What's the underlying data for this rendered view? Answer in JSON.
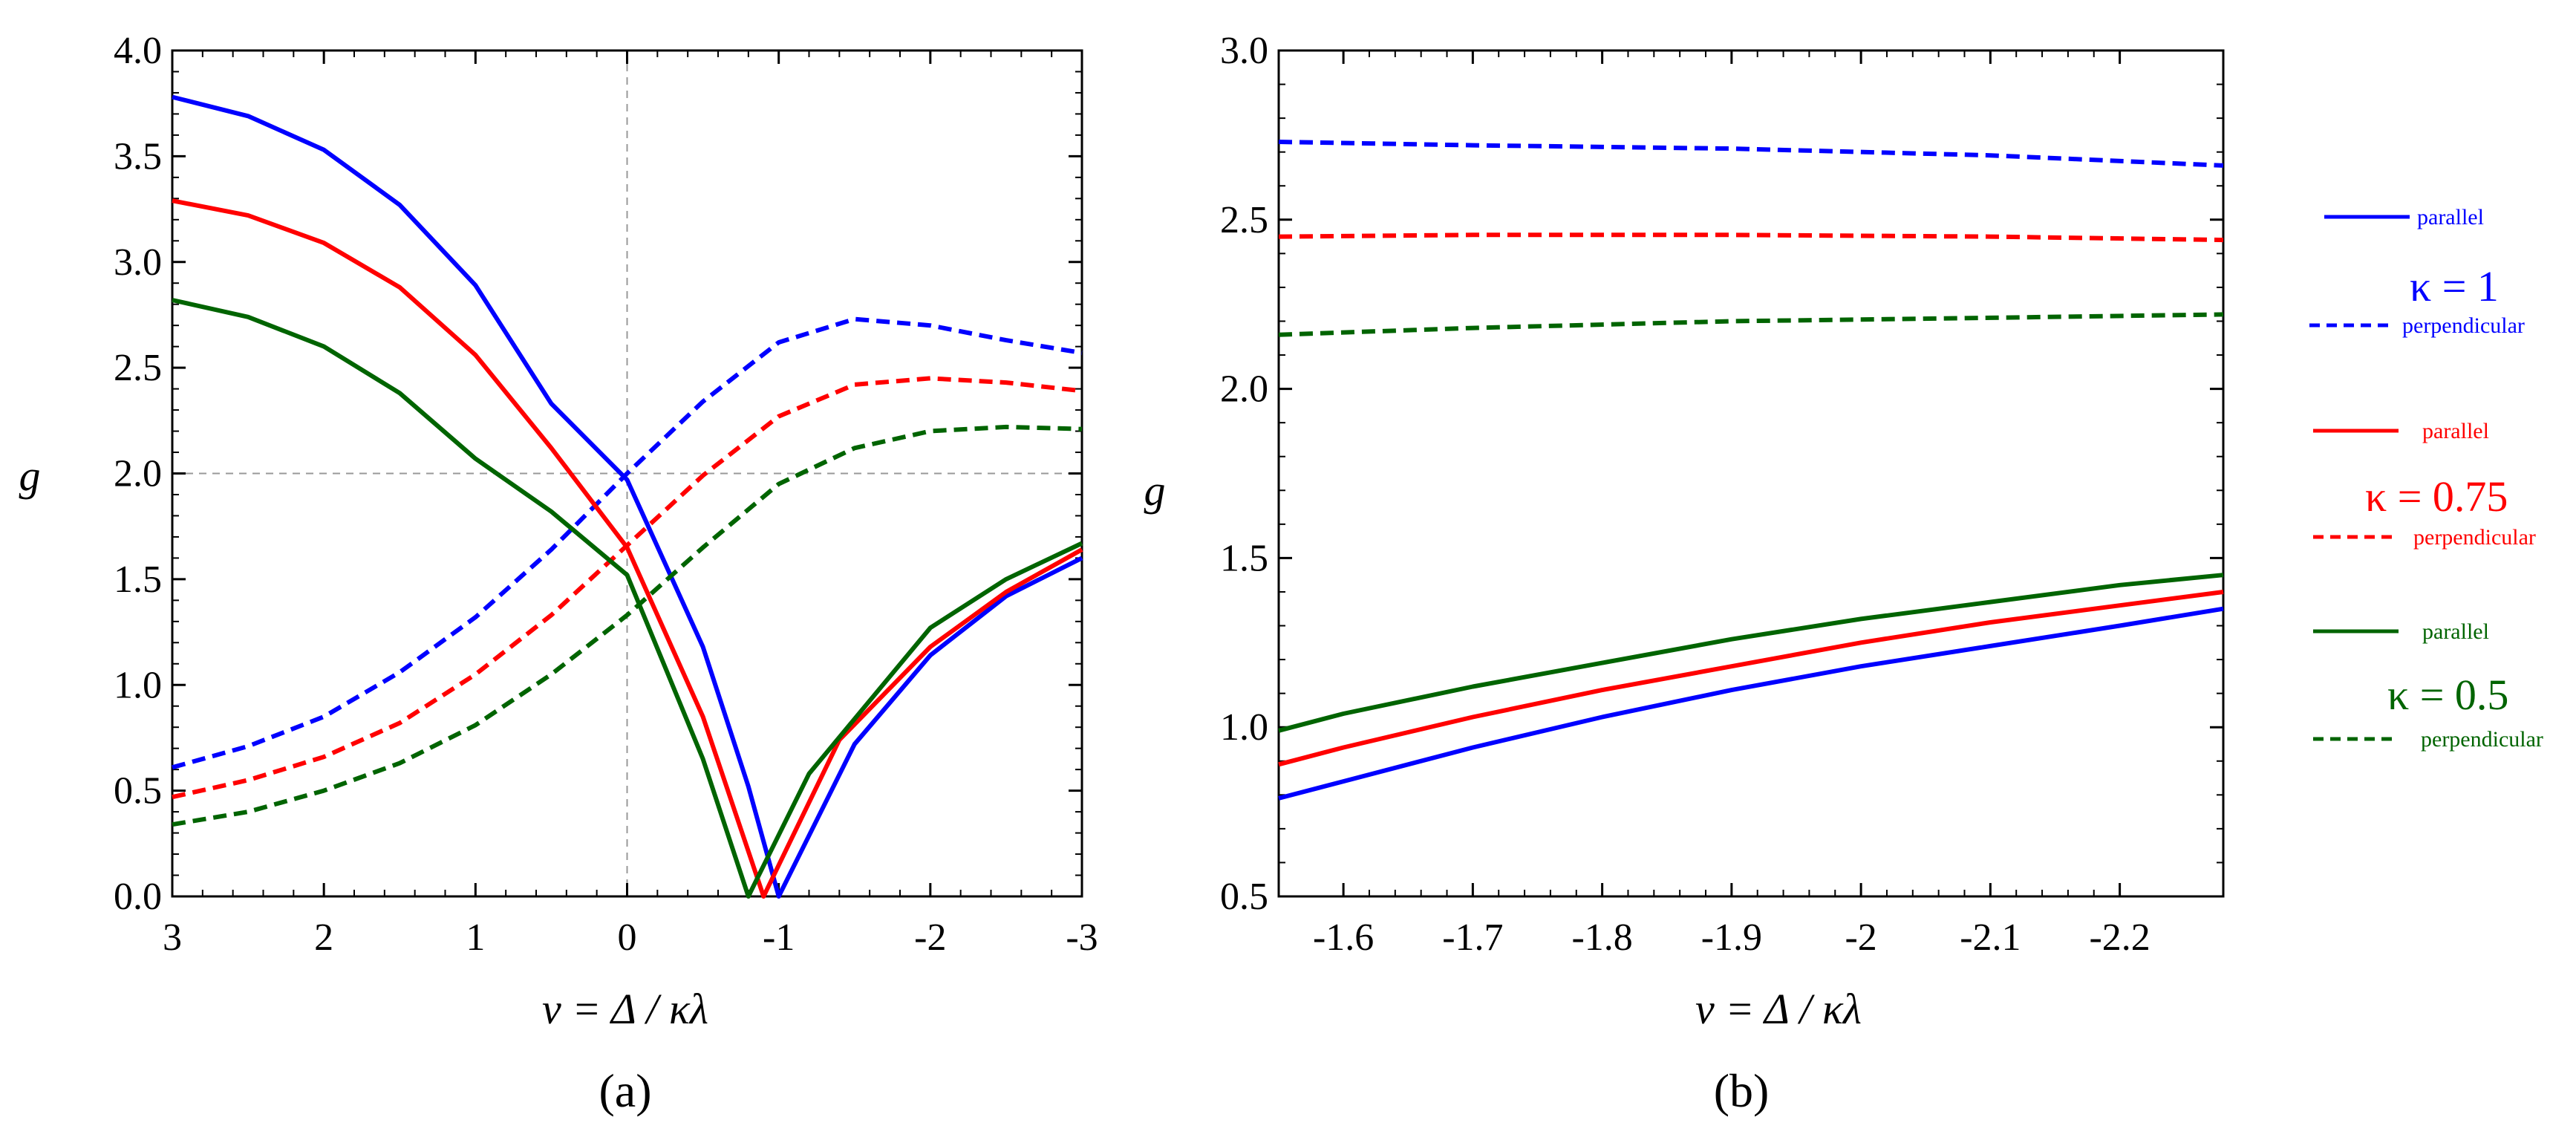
{
  "chart_data": [
    {
      "type": "line",
      "panel": "(a)",
      "xlabel": "ν = Δ / κλ",
      "ylabel": "g",
      "xlim": [
        3,
        -3
      ],
      "ylim": [
        0.0,
        4.0
      ],
      "x_ticks": [
        3,
        2,
        1,
        0,
        -1,
        -2,
        -3
      ],
      "y_ticks": [
        "0.0",
        "0.5",
        "1.0",
        "1.5",
        "2.0",
        "2.5",
        "3.0",
        "3.5",
        "4.0"
      ],
      "x_tick_labels": [
        "3",
        "2",
        "1",
        "0",
        "-1",
        "-2",
        "-3"
      ],
      "reference_lines": {
        "x": 0,
        "y": 2.0
      },
      "series": [
        {
          "name": "κ = 1 parallel",
          "color": "#0000ff",
          "dash": "solid",
          "x": [
            3,
            2.5,
            2,
            1.5,
            1,
            0.5,
            0,
            -0.5,
            -0.8,
            -1,
            -1.5,
            -2,
            -2.5,
            -3
          ],
          "y": [
            3.78,
            3.69,
            3.53,
            3.27,
            2.89,
            2.33,
            1.97,
            1.18,
            0.52,
            0.0,
            0.72,
            1.14,
            1.42,
            1.6
          ]
        },
        {
          "name": "κ = 1 perpendicular",
          "color": "#0000ff",
          "dash": "dashed",
          "x": [
            3,
            2.5,
            2,
            1.5,
            1,
            0.5,
            0,
            -0.5,
            -1,
            -1.5,
            -2,
            -2.5,
            -3
          ],
          "y": [
            0.61,
            0.71,
            0.85,
            1.06,
            1.32,
            1.64,
            2.0,
            2.34,
            2.62,
            2.73,
            2.7,
            2.63,
            2.57
          ]
        },
        {
          "name": "κ = 0.75 parallel",
          "color": "#ff0000",
          "dash": "solid",
          "x": [
            3,
            2.5,
            2,
            1.5,
            1,
            0.5,
            0,
            -0.5,
            -0.9,
            -1.4,
            -2,
            -2.5,
            -3
          ],
          "y": [
            3.29,
            3.22,
            3.09,
            2.88,
            2.56,
            2.12,
            1.65,
            0.85,
            0.0,
            0.74,
            1.18,
            1.44,
            1.64
          ]
        },
        {
          "name": "κ = 0.75 perpendicular",
          "color": "#ff0000",
          "dash": "dashed",
          "x": [
            3,
            2.5,
            2,
            1.5,
            1,
            0.5,
            0,
            -0.5,
            -1,
            -1.5,
            -2,
            -2.5,
            -3
          ],
          "y": [
            0.47,
            0.55,
            0.66,
            0.82,
            1.05,
            1.33,
            1.66,
            1.99,
            2.27,
            2.42,
            2.45,
            2.43,
            2.39
          ]
        },
        {
          "name": "κ = 0.5 parallel",
          "color": "#006400",
          "dash": "solid",
          "x": [
            3,
            2.5,
            2,
            1.5,
            1,
            0.5,
            0,
            -0.5,
            -0.8,
            -1.2,
            -2,
            -2.5,
            -3
          ],
          "y": [
            2.82,
            2.74,
            2.6,
            2.38,
            2.07,
            1.82,
            1.52,
            0.65,
            0.0,
            0.58,
            1.27,
            1.5,
            1.67
          ]
        },
        {
          "name": "κ = 0.5 perpendicular",
          "color": "#006400",
          "dash": "dashed",
          "x": [
            3,
            2.5,
            2,
            1.5,
            1,
            0.5,
            0,
            -0.5,
            -1,
            -1.5,
            -2,
            -2.5,
            -3
          ],
          "y": [
            0.34,
            0.4,
            0.5,
            0.63,
            0.81,
            1.05,
            1.33,
            1.65,
            1.95,
            2.12,
            2.2,
            2.22,
            2.21
          ]
        }
      ]
    },
    {
      "type": "line",
      "panel": "(b)",
      "xlabel": "ν = Δ / κλ",
      "ylabel": "g",
      "xlim": [
        -1.55,
        -2.28
      ],
      "ylim": [
        0.5,
        3.0
      ],
      "x_ticks": [
        -1.6,
        -1.7,
        -1.8,
        -1.9,
        -2.0,
        -2.1,
        -2.2
      ],
      "x_tick_labels": [
        "-1.6",
        "-1.7",
        "-1.8",
        "-1.9",
        "-2",
        "-2.1",
        "-2.2"
      ],
      "y_ticks": [
        "0.5",
        "1.0",
        "1.5",
        "2.0",
        "2.5",
        "3.0"
      ],
      "series": [
        {
          "name": "κ = 1 parallel",
          "color": "#0000ff",
          "dash": "solid",
          "x": [
            -1.55,
            -1.6,
            -1.7,
            -1.8,
            -1.9,
            -2.0,
            -2.1,
            -2.2,
            -2.28
          ],
          "y": [
            0.79,
            0.84,
            0.94,
            1.03,
            1.11,
            1.18,
            1.24,
            1.3,
            1.35
          ]
        },
        {
          "name": "κ = 1 perpendicular",
          "color": "#0000ff",
          "dash": "dashed",
          "x": [
            -1.55,
            -1.7,
            -1.9,
            -2.1,
            -2.28
          ],
          "y": [
            2.73,
            2.72,
            2.71,
            2.69,
            2.66
          ]
        },
        {
          "name": "κ = 0.75 parallel",
          "color": "#ff0000",
          "dash": "solid",
          "x": [
            -1.55,
            -1.6,
            -1.7,
            -1.8,
            -1.9,
            -2.0,
            -2.1,
            -2.2,
            -2.28
          ],
          "y": [
            0.89,
            0.94,
            1.03,
            1.11,
            1.18,
            1.25,
            1.31,
            1.36,
            1.4
          ]
        },
        {
          "name": "κ = 0.75 perpendicular",
          "color": "#ff0000",
          "dash": "dashed",
          "x": [
            -1.55,
            -1.7,
            -1.9,
            -2.1,
            -2.28
          ],
          "y": [
            2.45,
            2.455,
            2.455,
            2.45,
            2.44
          ]
        },
        {
          "name": "κ = 0.5 parallel",
          "color": "#006400",
          "dash": "solid",
          "x": [
            -1.55,
            -1.6,
            -1.7,
            -1.8,
            -1.9,
            -2.0,
            -2.1,
            -2.2,
            -2.28
          ],
          "y": [
            0.99,
            1.04,
            1.12,
            1.19,
            1.26,
            1.32,
            1.37,
            1.42,
            1.45
          ]
        },
        {
          "name": "κ = 0.5 perpendicular",
          "color": "#006400",
          "dash": "dashed",
          "x": [
            -1.55,
            -1.7,
            -1.9,
            -2.1,
            -2.28
          ],
          "y": [
            2.16,
            2.18,
            2.2,
            2.21,
            2.22
          ]
        }
      ]
    }
  ],
  "legend": {
    "groups": [
      {
        "kappa_label": "κ = 1",
        "color": "#0000ff",
        "parallel_label": "parallel",
        "perpendicular_label": "perpendicular"
      },
      {
        "kappa_label": "κ = 0.75",
        "color": "#ff0000",
        "parallel_label": "parallel",
        "perpendicular_label": "perpendicular"
      },
      {
        "kappa_label": "κ = 0.5",
        "color": "#006400",
        "parallel_label": "parallel",
        "perpendicular_label": "perpendicular"
      }
    ]
  },
  "captions": {
    "a": "(a)",
    "b": "(b)"
  }
}
